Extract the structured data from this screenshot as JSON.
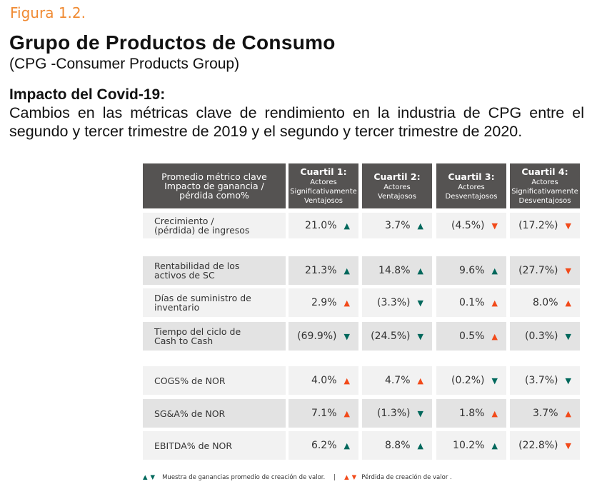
{
  "figure_label": "Figura 1.2.",
  "title": "Grupo de Productos de Consumo",
  "subtitle": "(CPG -Consumer Products Group)",
  "heading": "Impacto del Covid-19:",
  "description": "Cambios en las métricas clave de rendimiento en la industria de CPG entre el segundo y tercer trimestre de 2019 y el segundo y tercer trimestre de 2020.",
  "colors": {
    "gain": "#00685c",
    "loss": "#f24a1a",
    "header_bg": "#555352",
    "accent": "#f08a32"
  },
  "table": {
    "header_label": "Promedio métrico clave Impacto de ganancia / pérdida como%",
    "columns": [
      {
        "title": "Cuartil 1:",
        "sub": "Actores Significativamente Ventajosos"
      },
      {
        "title": "Cuartil 2:",
        "sub": "Actores Ventajosos"
      },
      {
        "title": "Cuartil 3:",
        "sub": "Actores Desventajosos"
      },
      {
        "title": "Cuartil 4:",
        "sub": "Actores Significativamente Desventajosos"
      }
    ],
    "rows": [
      {
        "label": "Crecimiento / (pérdida) de ingresos",
        "values": [
          {
            "v": "21.0%",
            "dir": "up",
            "c": "gain"
          },
          {
            "v": "3.7%",
            "dir": "up",
            "c": "gain"
          },
          {
            "v": "(4.5%)",
            "dir": "down",
            "c": "loss"
          },
          {
            "v": "(17.2%)",
            "dir": "down",
            "c": "loss"
          }
        ]
      },
      {
        "label": "Rentabilidad de los activos de SC",
        "values": [
          {
            "v": "21.3%",
            "dir": "up",
            "c": "gain"
          },
          {
            "v": "14.8%",
            "dir": "up",
            "c": "gain"
          },
          {
            "v": "9.6%",
            "dir": "up",
            "c": "gain"
          },
          {
            "v": "(27.7%)",
            "dir": "down",
            "c": "loss"
          }
        ]
      },
      {
        "label": "Días de suministro de inventario",
        "values": [
          {
            "v": "2.9%",
            "dir": "up",
            "c": "loss"
          },
          {
            "v": "(3.3%)",
            "dir": "down",
            "c": "gain"
          },
          {
            "v": "0.1%",
            "dir": "up",
            "c": "loss"
          },
          {
            "v": "8.0%",
            "dir": "up",
            "c": "loss"
          }
        ]
      },
      {
        "label": "Tiempo del ciclo de Cash to Cash",
        "values": [
          {
            "v": "(69.9%)",
            "dir": "down",
            "c": "gain"
          },
          {
            "v": "(24.5%)",
            "dir": "down",
            "c": "gain"
          },
          {
            "v": "0.5%",
            "dir": "up",
            "c": "loss"
          },
          {
            "v": "(0.3%)",
            "dir": "down",
            "c": "gain"
          }
        ]
      },
      {
        "label": "COGS% de NOR",
        "values": [
          {
            "v": "4.0%",
            "dir": "up",
            "c": "loss"
          },
          {
            "v": "4.7%",
            "dir": "up",
            "c": "loss"
          },
          {
            "v": "(0.2%)",
            "dir": "down",
            "c": "gain"
          },
          {
            "v": "(3.7%)",
            "dir": "down",
            "c": "gain"
          }
        ]
      },
      {
        "label": "SG&A% de NOR",
        "values": [
          {
            "v": "7.1%",
            "dir": "up",
            "c": "loss"
          },
          {
            "v": "(1.3%)",
            "dir": "down",
            "c": "gain"
          },
          {
            "v": "1.8%",
            "dir": "up",
            "c": "loss"
          },
          {
            "v": "3.7%",
            "dir": "up",
            "c": "loss"
          }
        ]
      },
      {
        "label": "EBITDA% de NOR",
        "values": [
          {
            "v": "6.2%",
            "dir": "up",
            "c": "gain"
          },
          {
            "v": "8.8%",
            "dir": "up",
            "c": "gain"
          },
          {
            "v": "10.2%",
            "dir": "up",
            "c": "gain"
          },
          {
            "v": "(22.8%)",
            "dir": "down",
            "c": "loss"
          }
        ]
      }
    ]
  },
  "legend": {
    "gain_text": "Muestra de ganancias promedio de creación de valor.",
    "separator": "|",
    "loss_text": "Pérdida de creación de valor ."
  }
}
